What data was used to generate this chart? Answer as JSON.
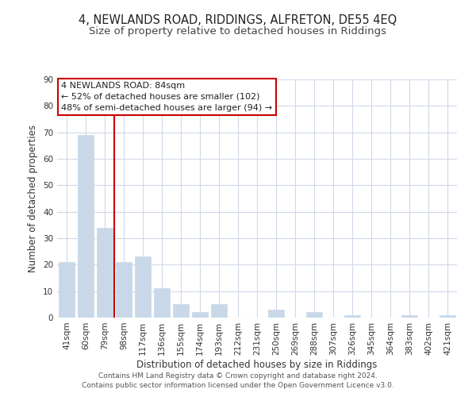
{
  "title": "4, NEWLANDS ROAD, RIDDINGS, ALFRETON, DE55 4EQ",
  "subtitle": "Size of property relative to detached houses in Riddings",
  "xlabel": "Distribution of detached houses by size in Riddings",
  "ylabel": "Number of detached properties",
  "bar_labels": [
    "41sqm",
    "60sqm",
    "79sqm",
    "98sqm",
    "117sqm",
    "136sqm",
    "155sqm",
    "174sqm",
    "193sqm",
    "212sqm",
    "231sqm",
    "250sqm",
    "269sqm",
    "288sqm",
    "307sqm",
    "326sqm",
    "345sqm",
    "364sqm",
    "383sqm",
    "402sqm",
    "421sqm"
  ],
  "bar_values": [
    21,
    69,
    34,
    21,
    23,
    11,
    5,
    2,
    5,
    0,
    0,
    3,
    0,
    2,
    0,
    1,
    0,
    0,
    1,
    0,
    1
  ],
  "bar_color": "#c8d8e8",
  "bar_edge_color": "#c8d8e8",
  "ylim": [
    0,
    90
  ],
  "yticks": [
    0,
    10,
    20,
    30,
    40,
    50,
    60,
    70,
    80,
    90
  ],
  "reference_line_color": "#cc0000",
  "annotation_text_line1": "4 NEWLANDS ROAD: 84sqm",
  "annotation_text_line2": "← 52% of detached houses are smaller (102)",
  "annotation_text_line3": "48% of semi-detached houses are larger (94) →",
  "footer_line1": "Contains HM Land Registry data © Crown copyright and database right 2024.",
  "footer_line2": "Contains public sector information licensed under the Open Government Licence v3.0.",
  "background_color": "#ffffff",
  "grid_color": "#d0d8e8",
  "title_fontsize": 10.5,
  "subtitle_fontsize": 9.5,
  "axis_label_fontsize": 8.5,
  "tick_fontsize": 7.5,
  "annotation_fontsize": 8,
  "footer_fontsize": 6.5
}
